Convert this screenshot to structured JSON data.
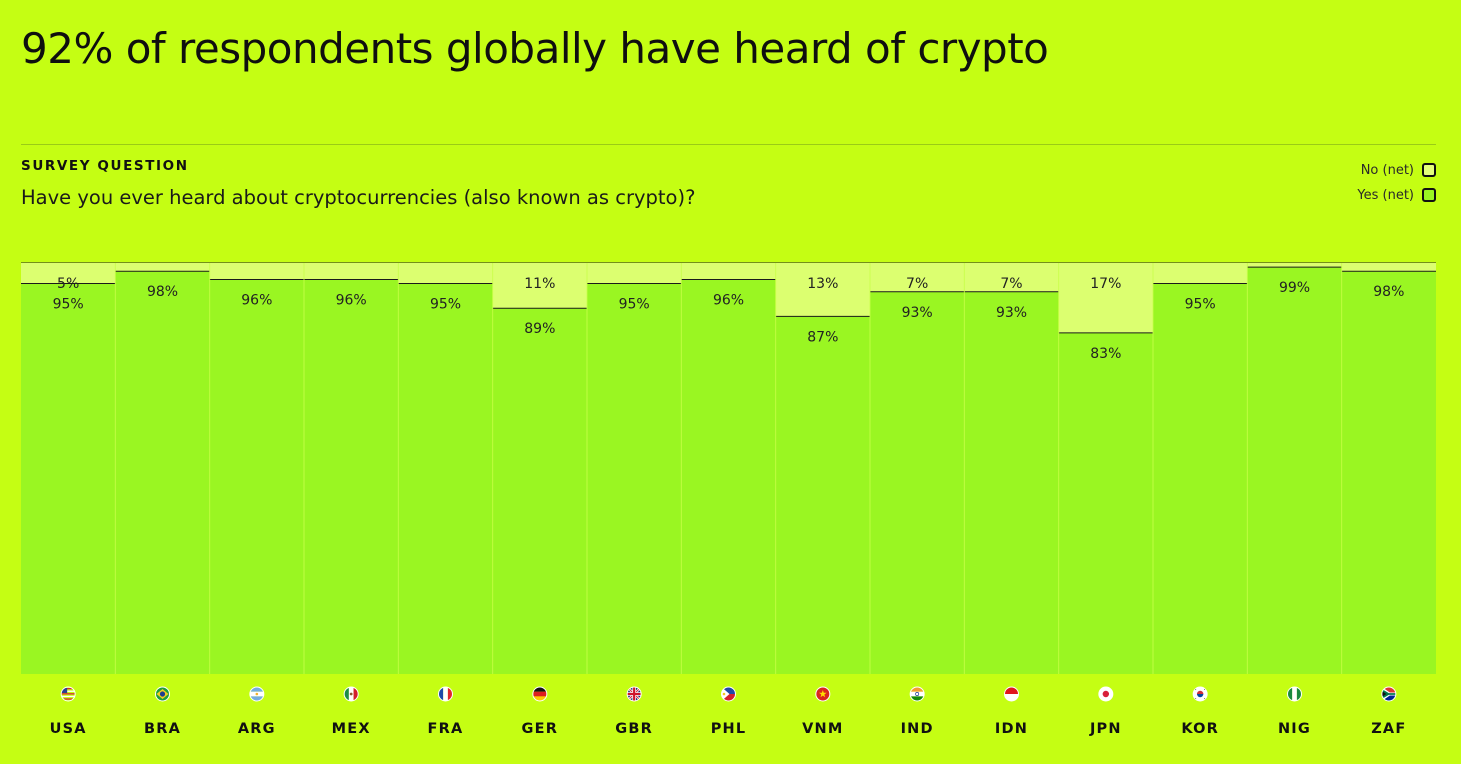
{
  "title": "92% of respondents globally have heard of crypto",
  "survey_label": "SURVEY QUESTION",
  "question": "Have you ever heard about cryptocurrencies (also known as crypto)?",
  "legend": {
    "no_label": "No (net)",
    "yes_label": "Yes (net)"
  },
  "colors": {
    "background": "#c5fe13",
    "yes": "#9af622",
    "no": "#dcff70",
    "text": "#111111"
  },
  "chart_data": {
    "type": "bar",
    "stacked": true,
    "normalized": true,
    "ylim": [
      0,
      100
    ],
    "categories": [
      "USA",
      "BRA",
      "ARG",
      "MEX",
      "FRA",
      "GER",
      "GBR",
      "PHL",
      "VNM",
      "IND",
      "IDN",
      "JPN",
      "KOR",
      "NIG",
      "ZAF"
    ],
    "flag_icons": [
      "flag-usa-icon",
      "flag-bra-icon",
      "flag-arg-icon",
      "flag-mex-icon",
      "flag-fra-icon",
      "flag-ger-icon",
      "flag-gbr-icon",
      "flag-phl-icon",
      "flag-vnm-icon",
      "flag-ind-icon",
      "flag-idn-icon",
      "flag-jpn-icon",
      "flag-kor-icon",
      "flag-nig-icon",
      "flag-zaf-icon"
    ],
    "series": [
      {
        "name": "Yes (net)",
        "values": [
          95,
          98,
          96,
          96,
          95,
          89,
          95,
          96,
          87,
          93,
          93,
          83,
          95,
          99,
          98
        ],
        "labels": [
          "95%",
          "98%",
          "96%",
          "96%",
          "95%",
          "89%",
          "95%",
          "96%",
          "87%",
          "93%",
          "93%",
          "83%",
          "95%",
          "99%",
          "98%"
        ]
      },
      {
        "name": "No (net)",
        "values": [
          5,
          2,
          4,
          4,
          5,
          11,
          5,
          4,
          13,
          7,
          7,
          17,
          5,
          1,
          2
        ],
        "labels": [
          "5%",
          "",
          "",
          "",
          "",
          "11%",
          "",
          "",
          "13%",
          "7%",
          "7%",
          "17%",
          "",
          "",
          ""
        ]
      }
    ]
  }
}
